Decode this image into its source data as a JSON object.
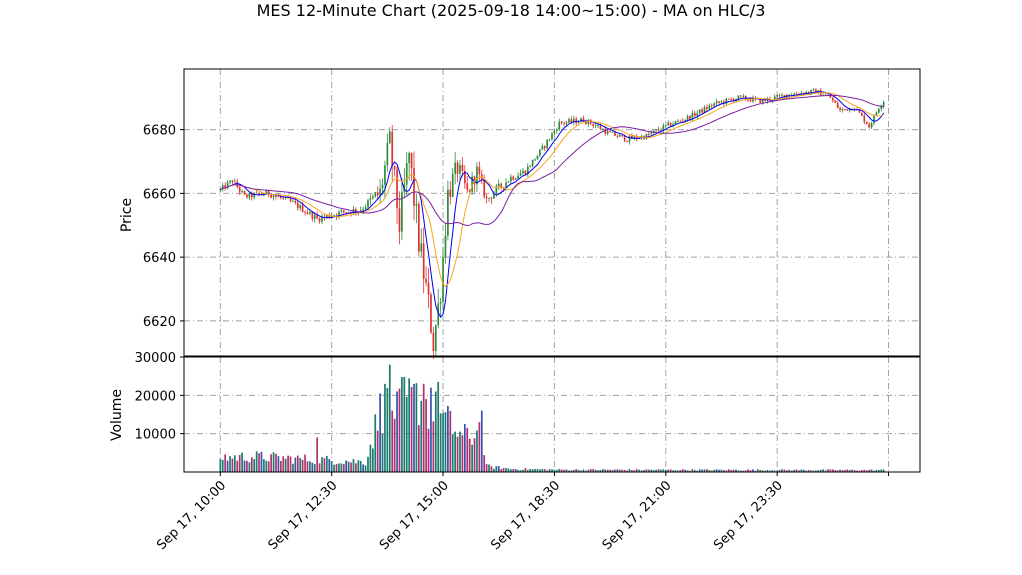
{
  "figure": {
    "title": "MES 12-Minute Chart (2025-09-18 14:00~15:00) - MA on HLC/3"
  },
  "colors": {
    "up": "#2e8b3a",
    "down": "#e03030",
    "ma_fast": "#0000ee",
    "ma_mid": "#f5a623",
    "ma_slow": "#7a1fa2",
    "grid": "#a0a0a0",
    "vol_up": "#1a7a6e",
    "vol_down": "#b0306e",
    "vol_alt": "#3a4fb0"
  },
  "chart_data": [
    {
      "type": "candlestick",
      "ylabel": "Price",
      "ylim": [
        6609,
        6699
      ],
      "yticks": [
        6620,
        6640,
        6660,
        6680
      ],
      "grid": true,
      "knots": [
        {
          "t": 0,
          "p": 6661
        },
        {
          "t": 5,
          "p": 6664
        },
        {
          "t": 10,
          "p": 6659
        },
        {
          "t": 20,
          "p": 6660
        },
        {
          "t": 30,
          "p": 6657
        },
        {
          "t": 40,
          "p": 6652
        },
        {
          "t": 50,
          "p": 6654
        },
        {
          "t": 58,
          "p": 6655
        },
        {
          "t": 66,
          "p": 6660
        },
        {
          "t": 70,
          "p": 6676
        },
        {
          "t": 74,
          "p": 6650
        },
        {
          "t": 78,
          "p": 6672
        },
        {
          "t": 82,
          "p": 6645
        },
        {
          "t": 86,
          "p": 6625
        },
        {
          "t": 88,
          "p": 6613
        },
        {
          "t": 91,
          "p": 6630
        },
        {
          "t": 94,
          "p": 6660
        },
        {
          "t": 98,
          "p": 6668
        },
        {
          "t": 102,
          "p": 6660
        },
        {
          "t": 106,
          "p": 6667
        },
        {
          "t": 110,
          "p": 6658
        },
        {
          "t": 114,
          "p": 6661
        },
        {
          "t": 120,
          "p": 6665
        },
        {
          "t": 126,
          "p": 6667
        },
        {
          "t": 134,
          "p": 6675
        },
        {
          "t": 140,
          "p": 6682
        },
        {
          "t": 150,
          "p": 6683
        },
        {
          "t": 156,
          "p": 6681
        },
        {
          "t": 160,
          "p": 6679
        },
        {
          "t": 168,
          "p": 6677
        },
        {
          "t": 176,
          "p": 6678
        },
        {
          "t": 184,
          "p": 6681
        },
        {
          "t": 194,
          "p": 6684
        },
        {
          "t": 204,
          "p": 6688
        },
        {
          "t": 214,
          "p": 6690
        },
        {
          "t": 224,
          "p": 6689
        },
        {
          "t": 234,
          "p": 6691
        },
        {
          "t": 246,
          "p": 6692
        },
        {
          "t": 252,
          "p": 6690
        },
        {
          "t": 256,
          "p": 6686
        },
        {
          "t": 262,
          "p": 6687
        },
        {
          "t": 266,
          "p": 6683
        },
        {
          "t": 268,
          "p": 6681
        },
        {
          "t": 272,
          "p": 6687
        },
        {
          "t": 274,
          "p": 6689
        }
      ],
      "volatility": [
        {
          "t": 0,
          "v": 1.2
        },
        {
          "t": 60,
          "v": 1.4
        },
        {
          "t": 66,
          "v": 5
        },
        {
          "t": 80,
          "v": 7
        },
        {
          "t": 95,
          "v": 5
        },
        {
          "t": 110,
          "v": 2
        },
        {
          "t": 130,
          "v": 1.2
        },
        {
          "t": 274,
          "v": 0.9
        }
      ],
      "moving_averages": [
        {
          "color_key": "ma_fast",
          "window": 6
        },
        {
          "color_key": "ma_mid",
          "window": 12
        },
        {
          "color_key": "ma_slow",
          "window": 30
        }
      ]
    },
    {
      "type": "bar",
      "ylabel": "Volume",
      "ylim": [
        0,
        30000
      ],
      "yticks": [
        10000,
        20000,
        30000
      ],
      "grid": true,
      "profile": [
        {
          "t": 0,
          "v": 3800
        },
        {
          "t": 15,
          "v": 4000
        },
        {
          "t": 30,
          "v": 3500
        },
        {
          "t": 50,
          "v": 3000
        },
        {
          "t": 60,
          "v": 2600
        },
        {
          "t": 66,
          "v": 16000
        },
        {
          "t": 75,
          "v": 18000
        },
        {
          "t": 82,
          "v": 19000
        },
        {
          "t": 92,
          "v": 14000
        },
        {
          "t": 100,
          "v": 9000
        },
        {
          "t": 108,
          "v": 10000
        },
        {
          "t": 110,
          "v": 1500
        },
        {
          "t": 120,
          "v": 800
        },
        {
          "t": 140,
          "v": 600
        },
        {
          "t": 274,
          "v": 500
        }
      ],
      "spikes": [
        {
          "t": 40,
          "v": 9000
        },
        {
          "t": 70,
          "v": 28000
        },
        {
          "t": 68,
          "v": 23000
        },
        {
          "t": 84,
          "v": 23000
        },
        {
          "t": 87,
          "v": 22000
        },
        {
          "t": 90,
          "v": 23500
        },
        {
          "t": 73,
          "v": 21000
        },
        {
          "t": 108,
          "v": 16000
        },
        {
          "t": 107,
          "v": 13000
        }
      ]
    }
  ],
  "x_axis": {
    "ticks": [
      {
        "t": 0,
        "label": "Sep 17, 10:00"
      },
      {
        "t": 46,
        "label": "Sep 17, 12:30"
      },
      {
        "t": 92,
        "label": "Sep 17, 15:00"
      },
      {
        "t": 138,
        "label": "Sep 17, 18:30"
      },
      {
        "t": 184,
        "label": "Sep 17, 21:00"
      },
      {
        "t": 230,
        "label": "Sep 17, 23:30"
      },
      {
        "t": 276,
        "label": ""
      }
    ],
    "range": [
      -15,
      289
    ]
  }
}
